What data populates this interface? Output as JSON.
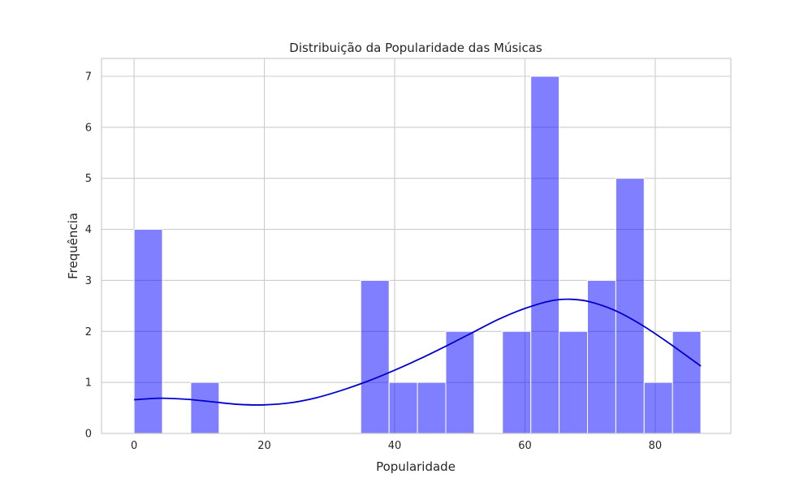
{
  "chart_data": {
    "type": "bar",
    "title": "Distribuição da Popularidade das Músicas",
    "xlabel": "Popularidade",
    "ylabel": "Frequência",
    "xlim": [
      -5,
      91.6
    ],
    "ylim": [
      0,
      7.35
    ],
    "xticks": [
      0,
      20,
      40,
      60,
      80
    ],
    "yticks": [
      0,
      1,
      2,
      3,
      4,
      5,
      6,
      7
    ],
    "grid": true,
    "bar_color": "#0000ff",
    "bar_opacity": 0.5,
    "kde_color": "#0000cc",
    "bins": [
      {
        "start": 0.0,
        "end": 4.35,
        "count": 4
      },
      {
        "start": 4.35,
        "end": 8.7,
        "count": 0
      },
      {
        "start": 8.7,
        "end": 13.05,
        "count": 1
      },
      {
        "start": 13.05,
        "end": 17.4,
        "count": 0
      },
      {
        "start": 17.4,
        "end": 21.75,
        "count": 0
      },
      {
        "start": 21.75,
        "end": 26.1,
        "count": 0
      },
      {
        "start": 26.1,
        "end": 30.45,
        "count": 0
      },
      {
        "start": 30.45,
        "end": 34.8,
        "count": 0
      },
      {
        "start": 34.8,
        "end": 39.15,
        "count": 3
      },
      {
        "start": 39.15,
        "end": 43.5,
        "count": 1
      },
      {
        "start": 43.5,
        "end": 47.85,
        "count": 1
      },
      {
        "start": 47.85,
        "end": 52.2,
        "count": 2
      },
      {
        "start": 52.2,
        "end": 56.55,
        "count": 0
      },
      {
        "start": 56.55,
        "end": 60.9,
        "count": 2
      },
      {
        "start": 60.9,
        "end": 65.25,
        "count": 7
      },
      {
        "start": 65.25,
        "end": 69.6,
        "count": 2
      },
      {
        "start": 69.6,
        "end": 73.95,
        "count": 3
      },
      {
        "start": 73.95,
        "end": 78.3,
        "count": 5
      },
      {
        "start": 78.3,
        "end": 82.65,
        "count": 1
      },
      {
        "start": 82.65,
        "end": 87.0,
        "count": 2
      }
    ],
    "kde": [
      {
        "x": 0,
        "y": 0.66
      },
      {
        "x": 4,
        "y": 0.69
      },
      {
        "x": 8,
        "y": 0.67
      },
      {
        "x": 12,
        "y": 0.62
      },
      {
        "x": 16,
        "y": 0.57
      },
      {
        "x": 20,
        "y": 0.56
      },
      {
        "x": 24,
        "y": 0.6
      },
      {
        "x": 28,
        "y": 0.7
      },
      {
        "x": 32,
        "y": 0.85
      },
      {
        "x": 36,
        "y": 1.03
      },
      {
        "x": 40,
        "y": 1.24
      },
      {
        "x": 44,
        "y": 1.47
      },
      {
        "x": 48,
        "y": 1.72
      },
      {
        "x": 52,
        "y": 1.98
      },
      {
        "x": 56,
        "y": 2.24
      },
      {
        "x": 60,
        "y": 2.45
      },
      {
        "x": 64,
        "y": 2.6
      },
      {
        "x": 67,
        "y": 2.63
      },
      {
        "x": 70,
        "y": 2.58
      },
      {
        "x": 74,
        "y": 2.4
      },
      {
        "x": 78,
        "y": 2.12
      },
      {
        "x": 82,
        "y": 1.78
      },
      {
        "x": 87,
        "y": 1.32
      }
    ]
  }
}
